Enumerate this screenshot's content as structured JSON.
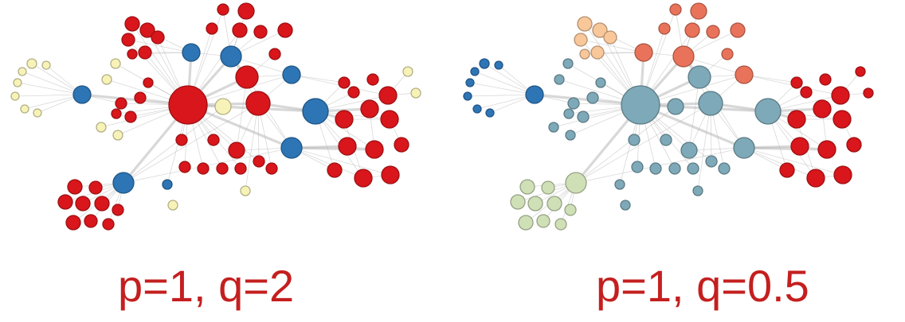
{
  "panels": [
    {
      "caption": "p=1, q=2"
    },
    {
      "caption": "p=1, q=0.5"
    }
  ],
  "colors": {
    "caption": "#c41f1f",
    "edge": "#b8b8b8",
    "left_red": "#d8161b",
    "left_blue": "#2d75b5",
    "left_yellow": "#f7f3b8",
    "right_blue": "#2e75b6",
    "right_teal": "#7ea9b8",
    "right_orange_light": "#f8c79a",
    "right_orange": "#e9735a",
    "right_red": "#d8161b",
    "right_green": "#cfe0b7"
  }
}
